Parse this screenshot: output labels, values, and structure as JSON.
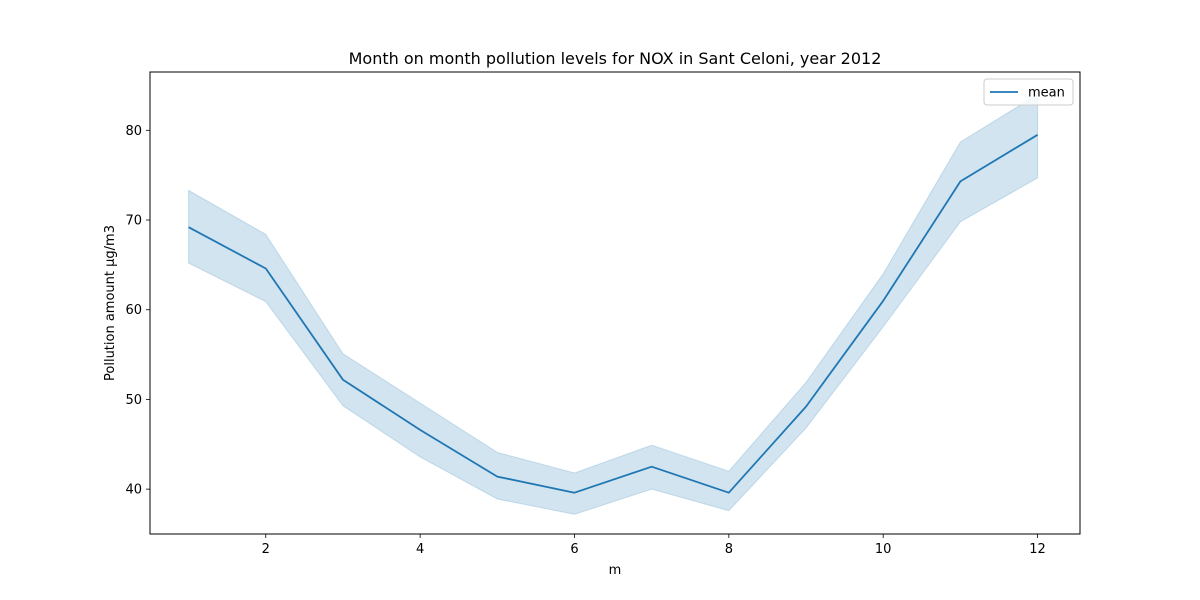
{
  "chart_data": {
    "type": "line",
    "title": "Month on month pollution levels for NOX in Sant Celoni, year 2012",
    "xlabel": "m",
    "ylabel": "Pollution amount μg/m3",
    "x": [
      1,
      2,
      3,
      4,
      5,
      6,
      7,
      8,
      9,
      10,
      11,
      12
    ],
    "xlim": [
      0.5,
      12.55
    ],
    "ylim": [
      35.0,
      86.5
    ],
    "xticks": [
      2,
      4,
      6,
      8,
      10,
      12
    ],
    "yticks": [
      40,
      50,
      60,
      70,
      80
    ],
    "grid": false,
    "legend_position": "top-right",
    "series": [
      {
        "name": "mean",
        "color": "#1f77b4",
        "values": [
          69.2,
          64.6,
          52.2,
          46.6,
          41.4,
          39.6,
          42.5,
          39.6,
          49.2,
          61.0,
          74.3,
          79.5
        ],
        "ci_lower": [
          65.2,
          60.9,
          49.3,
          43.6,
          38.9,
          37.2,
          40.0,
          37.6,
          46.8,
          58.1,
          69.8,
          74.7
        ],
        "ci_upper": [
          73.3,
          68.4,
          55.1,
          49.6,
          44.1,
          41.8,
          44.9,
          42.0,
          51.9,
          64.0,
          78.7,
          84.0
        ]
      }
    ]
  }
}
